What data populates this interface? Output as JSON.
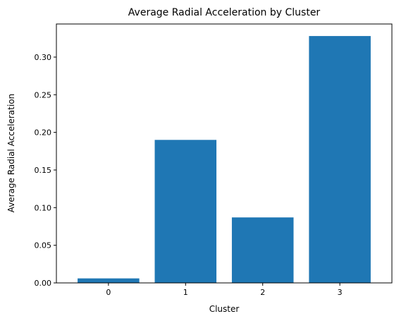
{
  "chart_data": {
    "type": "bar",
    "title": "Average Radial Acceleration by Cluster",
    "xlabel": "Cluster",
    "ylabel": "Average Radial Acceleration",
    "categories": [
      "0",
      "1",
      "2",
      "3"
    ],
    "values": [
      0.006,
      0.19,
      0.087,
      0.328
    ],
    "ylim": [
      0,
      0.344
    ],
    "yticks": [
      0.0,
      0.05,
      0.1,
      0.15,
      0.2,
      0.25,
      0.3
    ],
    "ytick_labels": [
      "0.00",
      "0.05",
      "0.10",
      "0.15",
      "0.20",
      "0.25",
      "0.30"
    ],
    "grid": false,
    "bar_color": "#1f77b4"
  }
}
